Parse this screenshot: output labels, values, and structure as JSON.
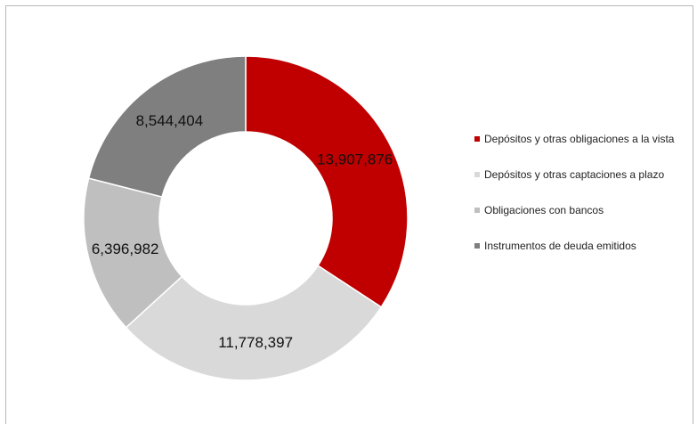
{
  "chart_data": {
    "type": "pie",
    "title": "",
    "donut": true,
    "legend_position": "right",
    "series": [
      {
        "values": [
          13907876,
          11778397,
          6396982,
          8544404
        ],
        "value_labels": [
          "13,907,876",
          "11,778,397",
          "6,396,982",
          "8,544,404"
        ],
        "colors": [
          "#c00000",
          "#d9d9d9",
          "#bfbfbf",
          "#7f7f7f"
        ]
      }
    ],
    "categories": [
      "Depósitos y otras obligaciones a la vista",
      "Depósitos y otras captaciones a plazo",
      "Obligaciones con bancos",
      "Instrumentos de deuda emitidos"
    ]
  }
}
